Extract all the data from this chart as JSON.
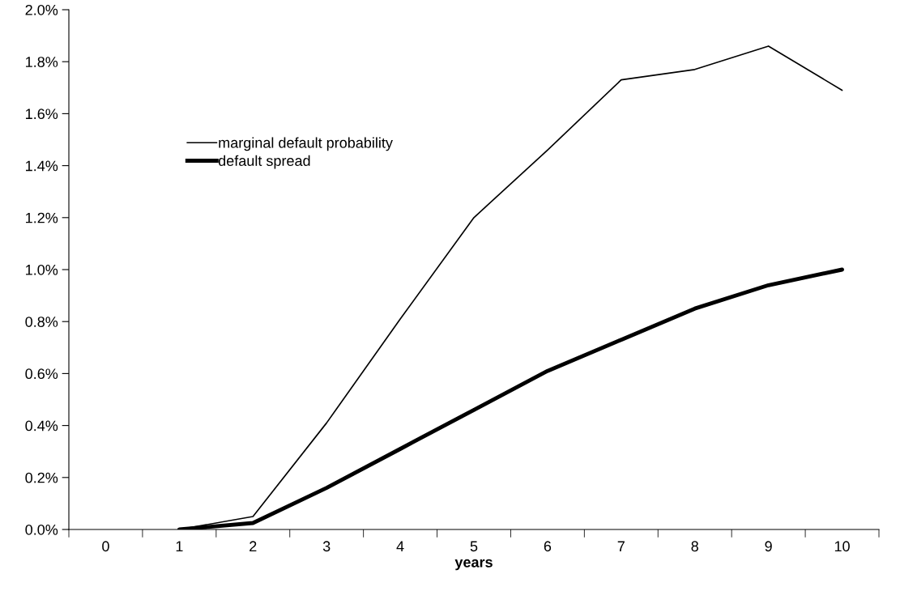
{
  "chart_data": {
    "type": "line",
    "xlabel": "years",
    "categories": [
      "0",
      "1",
      "2",
      "3",
      "4",
      "5",
      "6",
      "7",
      "8",
      "9",
      "10"
    ],
    "series": [
      {
        "name": "marginal default probability",
        "color": "#000000",
        "values": [
          null,
          0.0,
          0.05,
          0.41,
          0.81,
          1.2,
          1.46,
          1.73,
          1.77,
          1.86,
          1.69
        ]
      },
      {
        "name": "default spread",
        "color": "#000000",
        "values": [
          null,
          0.0,
          0.025,
          0.16,
          0.31,
          0.46,
          0.61,
          0.73,
          0.85,
          0.94,
          1.0
        ]
      }
    ],
    "ylim": [
      0,
      2.0
    ],
    "yticks": [
      {
        "value": 0,
        "label": "0.0%"
      },
      {
        "value": 0.2,
        "label": "0.2%"
      },
      {
        "value": 0.4,
        "label": "0.4%"
      },
      {
        "value": 0.6,
        "label": "0.6%"
      },
      {
        "value": 0.8,
        "label": "0.8%"
      },
      {
        "value": 1.0,
        "label": "1.0%"
      },
      {
        "value": 1.2,
        "label": "1.2%"
      },
      {
        "value": 1.4,
        "label": "1.4%"
      },
      {
        "value": 1.6,
        "label": "1.6%"
      },
      {
        "value": 1.8,
        "label": "1.8%"
      },
      {
        "value": 2.0,
        "label": "2.0%"
      }
    ],
    "grid": false,
    "legend": "top left",
    "marker": "none",
    "line_style": "solid"
  }
}
